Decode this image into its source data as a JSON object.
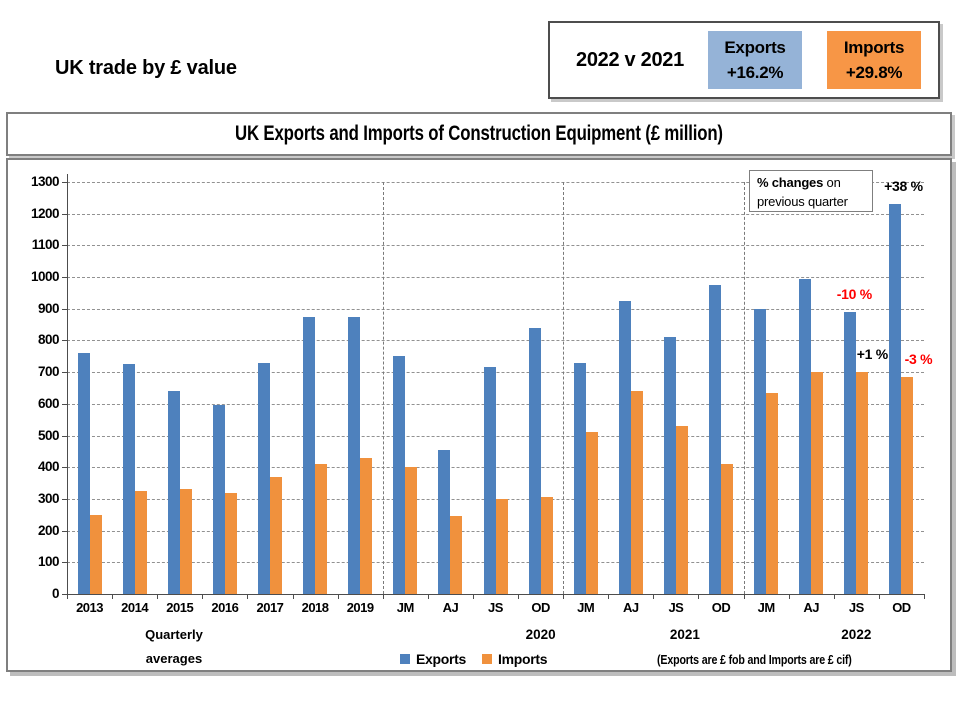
{
  "page": {
    "heading": "UK trade by £ value"
  },
  "summary": {
    "comparison_label": "2022 v 2021",
    "exports_label": "Exports",
    "exports_value": "+16.2%",
    "exports_color": "#95B3D7",
    "imports_label": "Imports",
    "imports_value": "+29.8%",
    "imports_color": "#F79646"
  },
  "chart": {
    "callout_bold": "% changes",
    "callout_rest": " on",
    "callout_line2": "previous quarter",
    "left_note_line1": "Quarterly",
    "left_note_line2": "averages",
    "footnote": "(Exports are £ fob and Imports are £ cif)"
  },
  "chart_data": {
    "type": "bar",
    "title": "UK Exports and Imports of Construction Equipment (£ million)",
    "xlabel": "",
    "ylabel": "",
    "ylim": [
      0,
      1300
    ],
    "ytick_step": 100,
    "grid": "horizontal dashed gray",
    "legend_position": "bottom center",
    "categories": [
      "2013",
      "2014",
      "2015",
      "2016",
      "2017",
      "2018",
      "2019",
      "JM",
      "AJ",
      "JS",
      "OD",
      "JM",
      "AJ",
      "JS",
      "OD",
      "JM",
      "AJ",
      "JS",
      "OD"
    ],
    "category_notes": "First 7 categories are quarterly averages for years 2013-2019; remaining are quarters (JM=Jan-Mar, AJ=Apr-Jun, JS=Jul-Sep, OD=Oct-Dec) of 2020, 2021, 2022",
    "series": [
      {
        "name": "Exports",
        "color": "#4E81BD",
        "values": [
          760,
          725,
          640,
          595,
          730,
          875,
          875,
          750,
          455,
          715,
          840,
          730,
          925,
          810,
          975,
          900,
          995,
          890,
          1230
        ]
      },
      {
        "name": "Imports",
        "color": "#F0913D",
        "values": [
          250,
          325,
          330,
          320,
          370,
          410,
          430,
          400,
          245,
          300,
          305,
          510,
          640,
          530,
          410,
          635,
          700,
          700,
          685
        ]
      }
    ],
    "group_separators_after": [
      6,
      10,
      14
    ],
    "year_labels": [
      {
        "text": "2020",
        "slot": 10
      },
      {
        "text": "2021",
        "slot": 13.2
      },
      {
        "text": "2022",
        "slot": 17
      }
    ],
    "annotations": [
      {
        "text": "+38 %",
        "color": "#000000",
        "category": 18,
        "series": "Exports",
        "dx": 2
      },
      {
        "text": "-10 %",
        "color": "#FF0000",
        "category": 17,
        "series": "Exports",
        "dx": -2
      },
      {
        "text": "+1 %",
        "color": "#000000",
        "category": 17,
        "series": "Imports",
        "dx": 16
      },
      {
        "text": "-3 %",
        "color": "#FF0000",
        "category": 18,
        "series": "Imports",
        "dx": 17
      }
    ]
  }
}
